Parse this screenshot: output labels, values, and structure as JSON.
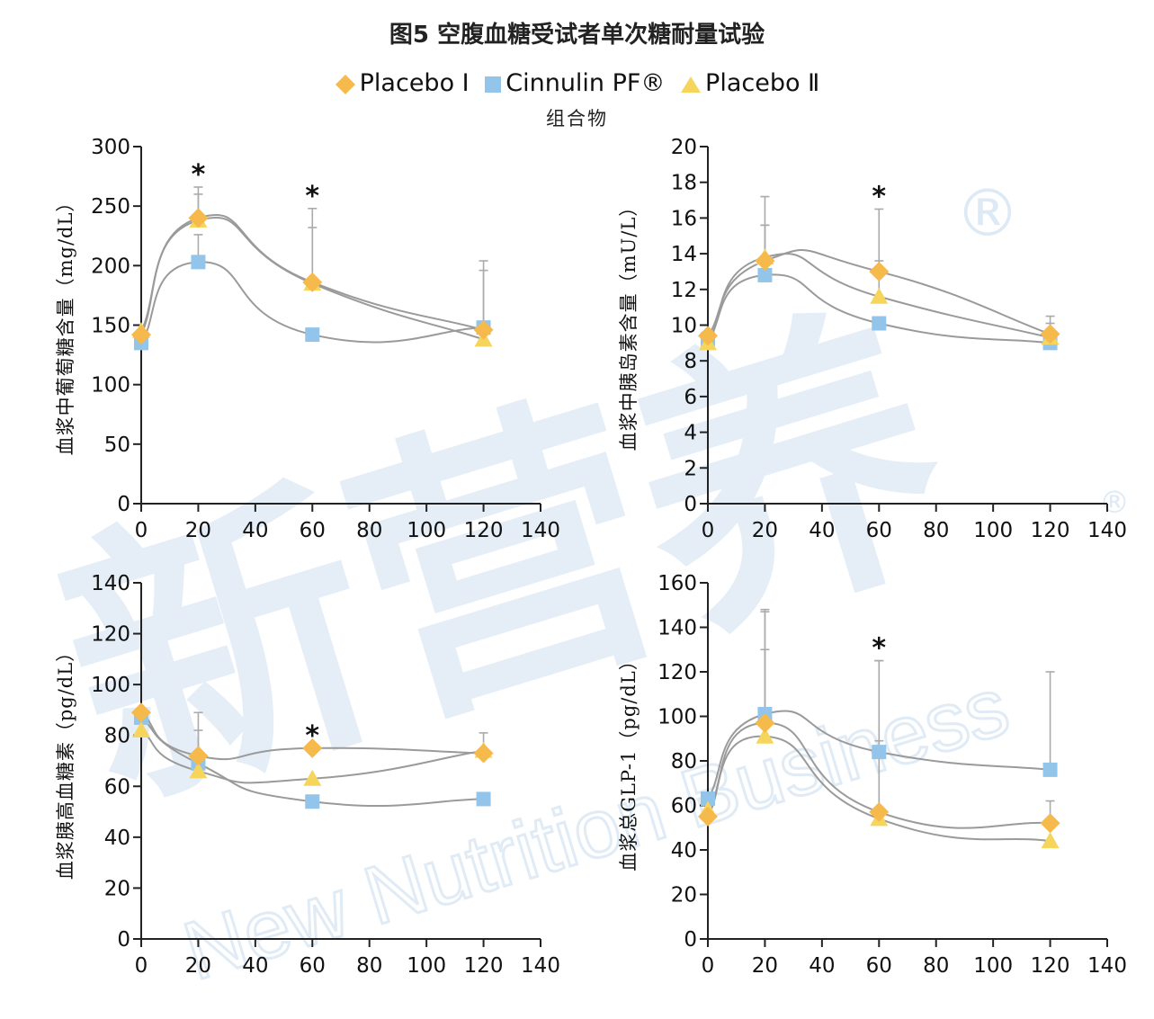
{
  "title": "图5 空腹血糖受试者单次糖耐量试验",
  "legend": {
    "items": [
      {
        "label": "Placebo Ⅰ",
        "marker": "diamond",
        "color": "#F6B94B"
      },
      {
        "label": "Cinnulin PF®",
        "marker": "square",
        "color": "#93C4EA"
      },
      {
        "label": "Placebo Ⅱ",
        "marker": "triangle",
        "color": "#F6D55C"
      }
    ],
    "note": "组合物"
  },
  "watermark": {
    "cn": "新营养",
    "en": "New Nutrition Business",
    "mark": "®"
  },
  "colors": {
    "line": "#9a9a9a",
    "errorbar": "#aaaaaa",
    "axis": "#222222"
  },
  "chart_data": [
    {
      "type": "line",
      "ylabel": "血浆中葡萄糖含量（mg/dL）",
      "x": [
        0,
        20,
        60,
        120
      ],
      "xlim": [
        0,
        140
      ],
      "xticks": [
        0,
        20,
        40,
        60,
        80,
        100,
        120,
        140
      ],
      "ylim": [
        0,
        300
      ],
      "yticks": [
        0,
        50,
        100,
        150,
        200,
        250,
        300
      ],
      "series": [
        {
          "name": "Placebo Ⅰ",
          "values": [
            142,
            240,
            186,
            146
          ],
          "err": [
            0,
            26,
            62,
            58
          ]
        },
        {
          "name": "Cinnulin PF®",
          "values": [
            135,
            203,
            142,
            148
          ],
          "err": [
            0,
            23,
            0,
            0
          ]
        },
        {
          "name": "Placebo Ⅱ",
          "values": [
            145,
            238,
            185,
            138
          ],
          "err": [
            0,
            22,
            47,
            58
          ]
        }
      ],
      "significance_x": [
        20,
        60
      ],
      "significance_label": "*",
      "grid": false
    },
    {
      "type": "line",
      "ylabel": "血浆中胰岛素含量（mU/L）",
      "x": [
        0,
        20,
        60,
        120
      ],
      "xlim": [
        0,
        140
      ],
      "xticks": [
        0,
        20,
        40,
        60,
        80,
        100,
        120,
        140
      ],
      "ylim": [
        0,
        20
      ],
      "yticks": [
        0,
        2,
        4,
        6,
        8,
        10,
        12,
        14,
        16,
        18,
        20
      ],
      "series": [
        {
          "name": "Placebo Ⅰ",
          "values": [
            9.4,
            13.6,
            13.0,
            9.5
          ],
          "err": [
            0,
            3.6,
            3.5,
            1.0
          ]
        },
        {
          "name": "Cinnulin PF®",
          "values": [
            9.2,
            12.8,
            10.1,
            9.0
          ],
          "err": [
            0,
            2.8,
            0,
            0
          ]
        },
        {
          "name": "Placebo Ⅱ",
          "values": [
            9.0,
            13.8,
            11.6,
            9.3
          ],
          "err": [
            0,
            1.8,
            2.0,
            0.8
          ]
        }
      ],
      "significance_x": [
        60
      ],
      "significance_label": "*",
      "grid": false
    },
    {
      "type": "line",
      "ylabel": "血浆胰高血糖素（pg/dL）",
      "x": [
        0,
        20,
        60,
        120
      ],
      "xlim": [
        0,
        140
      ],
      "xticks": [
        0,
        20,
        40,
        60,
        80,
        100,
        120,
        140
      ],
      "ylim": [
        0,
        140
      ],
      "yticks": [
        0,
        20,
        40,
        60,
        80,
        100,
        120,
        140
      ],
      "series": [
        {
          "name": "Placebo Ⅰ",
          "values": [
            89,
            72,
            75,
            73
          ],
          "err": [
            0,
            17,
            0,
            0
          ]
        },
        {
          "name": "Cinnulin PF®",
          "values": [
            87,
            69,
            54,
            55
          ],
          "err": [
            0,
            0,
            0,
            0
          ]
        },
        {
          "name": "Placebo Ⅱ",
          "values": [
            82,
            66,
            63,
            74
          ],
          "err": [
            0,
            16,
            0,
            7
          ]
        }
      ],
      "significance_x": [
        60
      ],
      "significance_label": "*",
      "grid": false
    },
    {
      "type": "line",
      "ylabel": "血浆总GLP-1（pg/dL）",
      "x": [
        0,
        20,
        60,
        120
      ],
      "xlim": [
        0,
        140
      ],
      "xticks": [
        0,
        20,
        40,
        60,
        80,
        100,
        120,
        140
      ],
      "ylim": [
        0,
        160
      ],
      "yticks": [
        0,
        20,
        40,
        60,
        80,
        100,
        120,
        140,
        160
      ],
      "series": [
        {
          "name": "Placebo Ⅰ",
          "values": [
            55,
            97,
            57,
            52
          ],
          "err": [
            0,
            50,
            68,
            10
          ]
        },
        {
          "name": "Cinnulin PF®",
          "values": [
            63,
            101,
            84,
            76
          ],
          "err": [
            0,
            47,
            41,
            44
          ]
        },
        {
          "name": "Placebo Ⅱ",
          "values": [
            58,
            91,
            54,
            44
          ],
          "err": [
            0,
            39,
            35,
            0
          ]
        }
      ],
      "significance_x": [
        60
      ],
      "significance_label": "*",
      "grid": false
    }
  ]
}
